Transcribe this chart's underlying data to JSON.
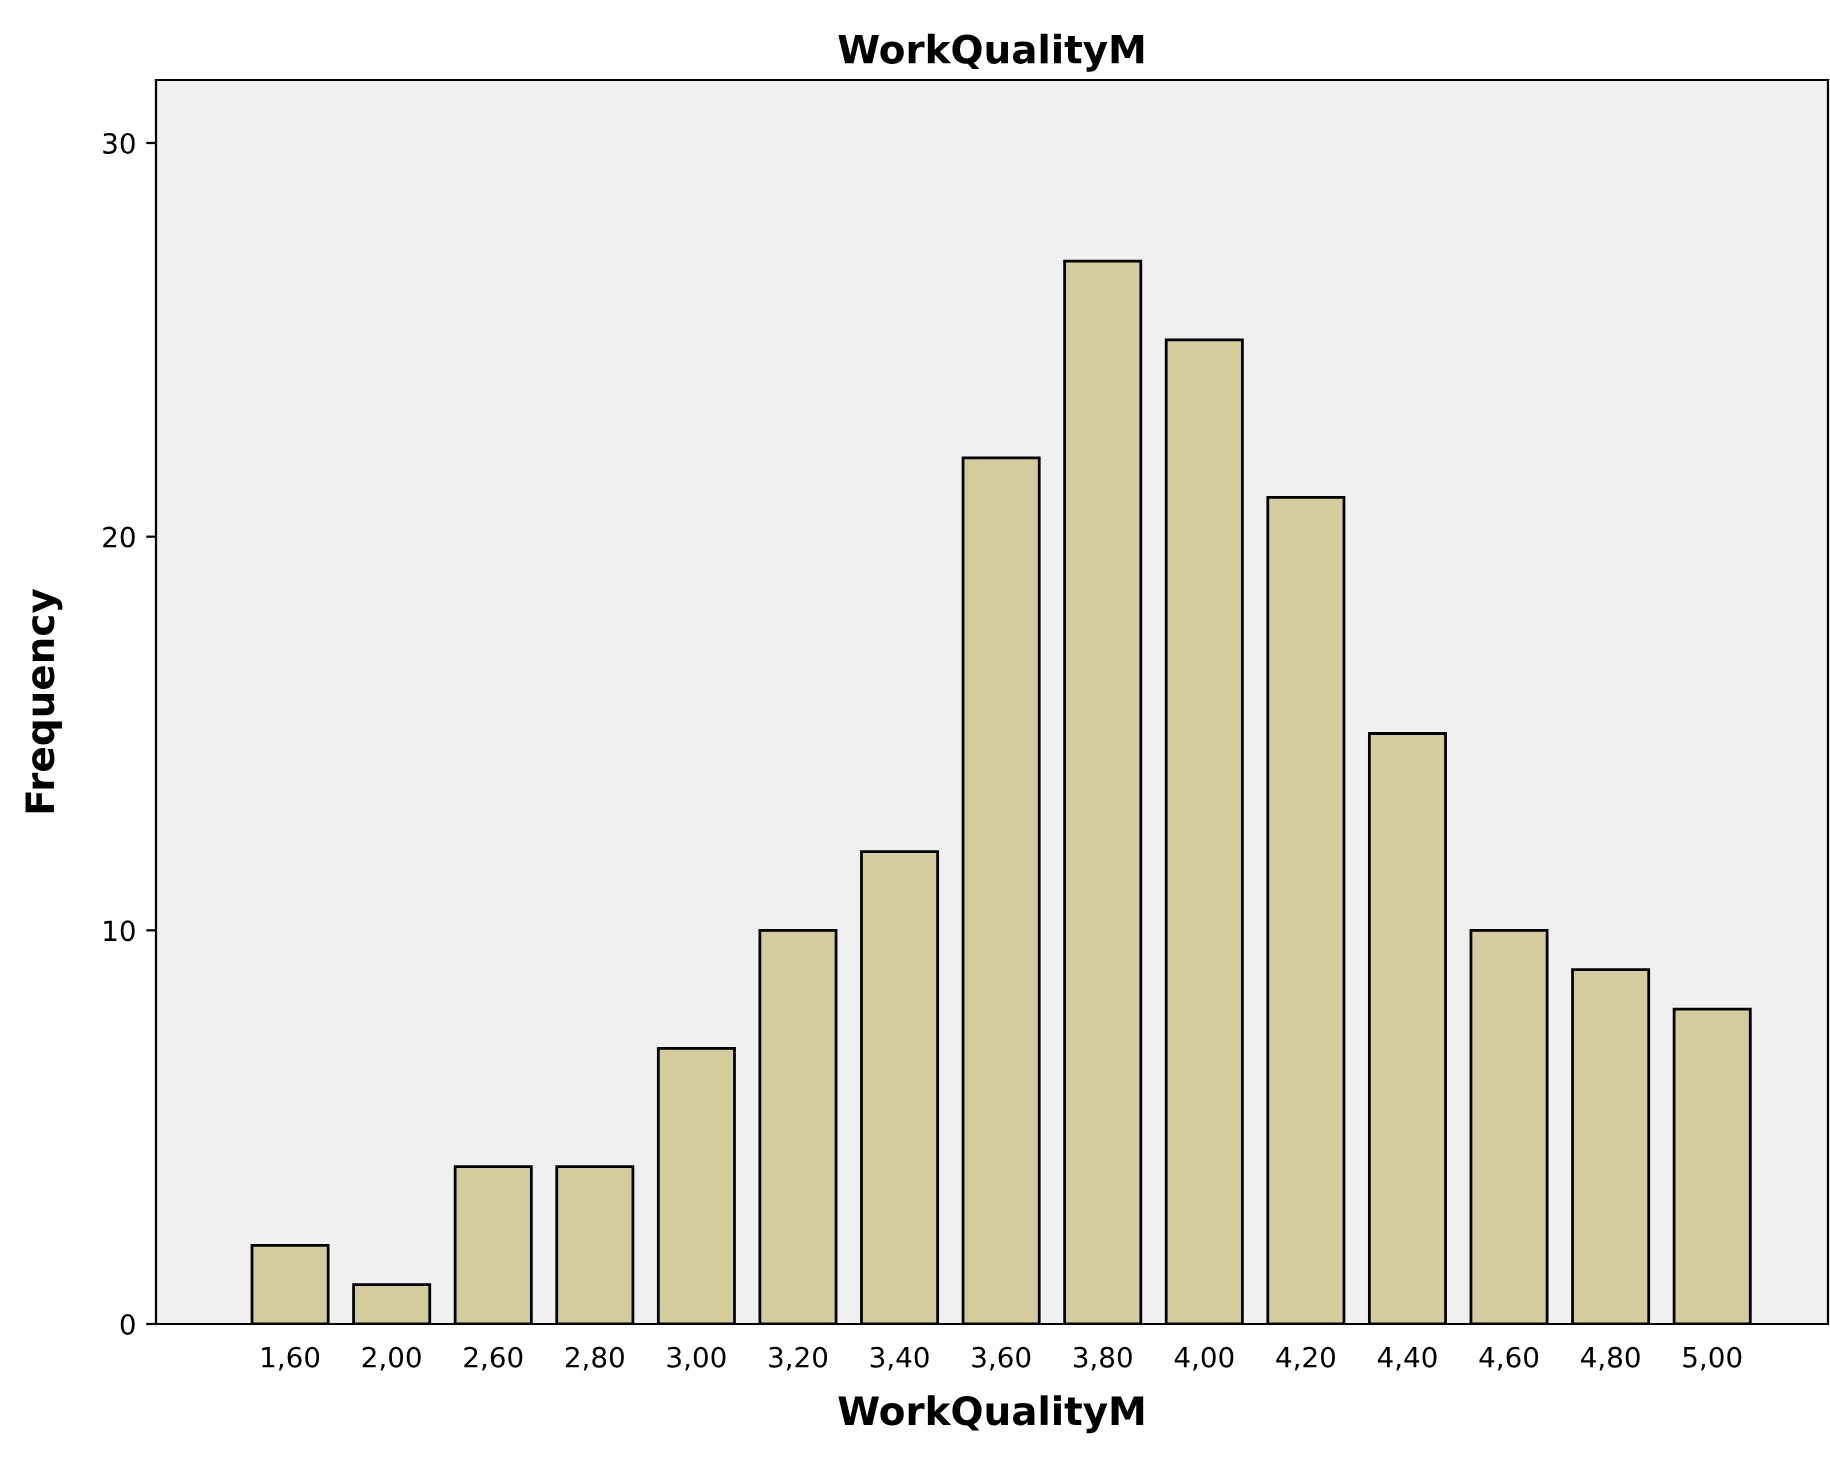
{
  "chart_data": {
    "type": "bar",
    "title": "WorkQualityM",
    "xlabel": "WorkQualityM",
    "ylabel": "Frequency",
    "categories": [
      "1,60",
      "2,00",
      "2,60",
      "2,80",
      "3,00",
      "3,20",
      "3,40",
      "3,60",
      "3,80",
      "4,00",
      "4,20",
      "4,40",
      "4,60",
      "4,80",
      "5,00"
    ],
    "values": [
      2,
      1,
      4,
      4,
      7,
      10,
      12,
      22,
      27,
      25,
      21,
      15,
      10,
      9,
      8
    ],
    "color": "#d3cd9b",
    "ylim": [
      0,
      31.6
    ],
    "yticks": [
      0,
      10,
      20,
      30
    ],
    "grid": false
  }
}
